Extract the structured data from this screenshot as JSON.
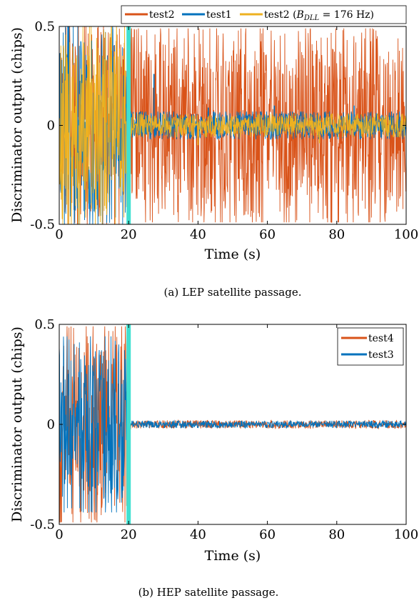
{
  "chart_data": [
    {
      "type": "line",
      "caption": "(a) LEP satellite passage.",
      "xlabel": "Time (s)",
      "ylabel": "Discriminator output (chips)",
      "xlim": [
        0,
        100
      ],
      "ylim": [
        -0.5,
        0.5
      ],
      "xticks": [
        "0",
        "20",
        "40",
        "60",
        "80",
        "100"
      ],
      "yticks": [
        "-0.5",
        "0",
        "0.5"
      ],
      "legend_position": "top",
      "legend": [
        "test2",
        "test1",
        "test2 (B_DLL = 176 Hz)"
      ],
      "marker_x": 20,
      "marker_color": "#40e0d0",
      "series": [
        {
          "name": "test2",
          "color": "#d95319",
          "segments": [
            {
              "t0": 0,
              "t1": 19.5,
              "amp": 0.5
            },
            {
              "t0": 20.3,
              "t1": 100,
              "amp": 0.49
            }
          ]
        },
        {
          "name": "test1",
          "color": "#0072bd",
          "segments": [
            {
              "t0": 0,
              "t1": 19.5,
              "amp": 0.5
            },
            {
              "t0": 20.3,
              "t1": 100,
              "amp": 0.07
            }
          ],
          "spikes": [
            {
              "t": 27.3,
              "v": 0.26
            },
            {
              "t": 43,
              "v": 0.09
            },
            {
              "t": 62,
              "v": 0.1
            },
            {
              "t": 85,
              "v": 0.1
            }
          ]
        },
        {
          "name": "test2 (B_DLL = 176 Hz)",
          "color": "#edb120",
          "segments": [
            {
              "t0": 0,
              "t1": 19.5,
              "amp": 0.5
            },
            {
              "t0": 20.3,
              "t1": 100,
              "amp": 0.06
            }
          ],
          "spikes": [
            {
              "t": 40,
              "v": -0.1
            },
            {
              "t": 75,
              "v": -0.09
            }
          ]
        }
      ]
    },
    {
      "type": "line",
      "caption": "(b) HEP satellite passage.",
      "xlabel": "Time (s)",
      "ylabel": "Discriminator output (chips)",
      "xlim": [
        0,
        100
      ],
      "ylim": [
        -0.5,
        0.5
      ],
      "xticks": [
        "0",
        "20",
        "40",
        "60",
        "80",
        "100"
      ],
      "yticks": [
        "-0.5",
        "0",
        "0.5"
      ],
      "legend_position": "top-right",
      "legend": [
        "test4",
        "test3"
      ],
      "marker_x": 20,
      "marker_color": "#40e0d0",
      "series": [
        {
          "name": "test4",
          "color": "#d95319",
          "segments": [
            {
              "t0": 0,
              "t1": 19.5,
              "amp": 0.49
            },
            {
              "t0": 20.3,
              "t1": 100,
              "amp": 0.02
            }
          ]
        },
        {
          "name": "test3",
          "color": "#0072bd",
          "segments": [
            {
              "t0": 0,
              "t1": 19.5,
              "amp": 0.44
            },
            {
              "t0": 20.3,
              "t1": 100,
              "amp": 0.018
            }
          ]
        }
      ]
    }
  ]
}
